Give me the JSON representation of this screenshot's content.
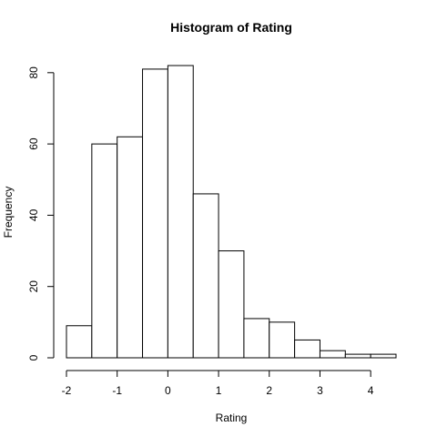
{
  "chart_data": {
    "type": "bar",
    "title": "Histogram of Rating",
    "xlabel": "Rating",
    "ylabel": "Frequency",
    "bin_edges": [
      -2.0,
      -1.5,
      -1.0,
      -0.5,
      0.0,
      0.5,
      1.0,
      1.5,
      2.0,
      2.5,
      3.0,
      3.5,
      4.0,
      4.5
    ],
    "values": [
      9,
      60,
      62,
      81,
      82,
      46,
      30,
      11,
      10,
      5,
      2,
      1,
      1
    ],
    "xlim": [
      -2.0,
      4.5
    ],
    "ylim": [
      0,
      82
    ],
    "x_ticks": [
      -2,
      -1,
      0,
      1,
      2,
      3,
      4
    ],
    "x_tick_labels": [
      "-2",
      "-1",
      "0",
      "1",
      "2",
      "3",
      "4"
    ],
    "y_ticks": [
      0,
      20,
      40,
      60,
      80
    ],
    "y_tick_labels": [
      "0",
      "20",
      "40",
      "60",
      "80"
    ],
    "grid": false,
    "legend": "none",
    "colors": {
      "bar_fill": "#ffffff",
      "bar_stroke": "#000000",
      "axis": "#000000",
      "text": "#000000",
      "background": "#ffffff"
    }
  }
}
